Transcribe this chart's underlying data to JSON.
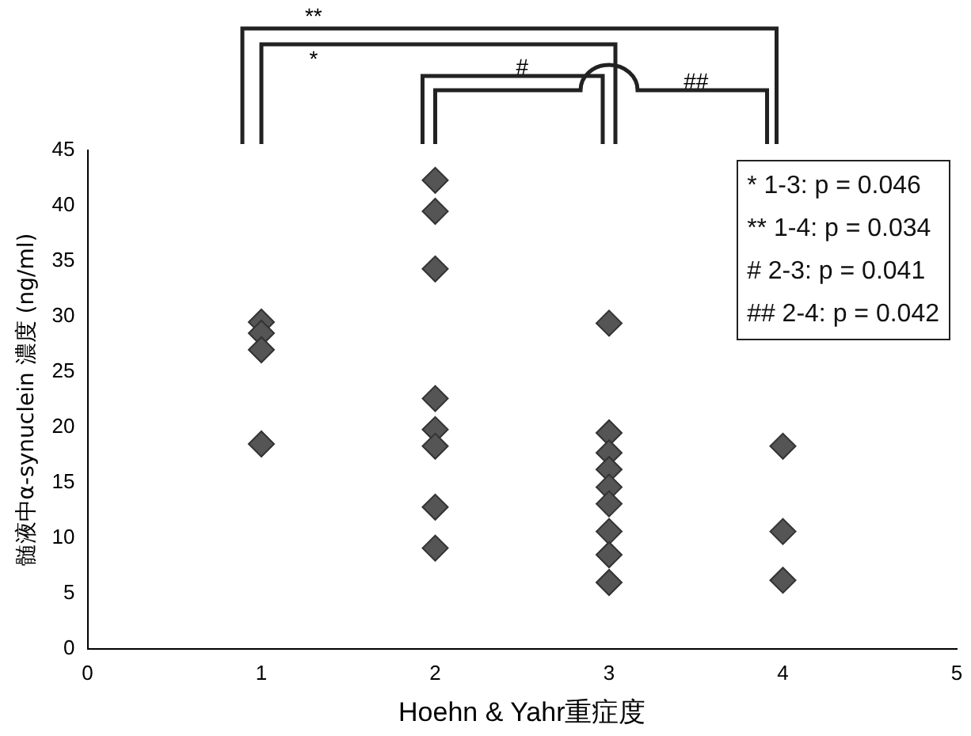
{
  "chart_data": {
    "type": "scatter",
    "xlabel": "Hoehn & Yahr重症度",
    "ylabel": "髄液中α-synuclein 濃度 (ng/ml)",
    "series": [
      {
        "color": "#555555",
        "x": [
          1,
          1,
          1,
          1,
          2,
          2,
          2,
          2,
          2,
          2,
          2,
          2,
          3,
          3,
          3,
          3,
          3,
          3,
          3,
          3,
          3,
          4,
          4,
          4
        ],
        "values": [
          29.5,
          28.5,
          27,
          18.5,
          42.3,
          39.5,
          34.3,
          22.6,
          19.8,
          18.3,
          12.8,
          9.1,
          29.4,
          19.5,
          17.7,
          16.2,
          14.6,
          13.1,
          10.6,
          8.5,
          6,
          18.3,
          10.6,
          6.2
        ]
      }
    ],
    "xlim": [
      0,
      5
    ],
    "xticks": [
      0,
      1,
      2,
      3,
      4,
      5
    ],
    "ylim": [
      0,
      45
    ],
    "yticks": [
      0,
      5,
      10,
      15,
      20,
      25,
      30,
      35,
      40,
      45
    ],
    "grid": false,
    "legend": false,
    "marker": "diamond",
    "annotations": [
      "* 1-3: p = 0.046",
      "** 1-4: p = 0.034",
      "# 2-3: p = 0.041",
      "## 2-4: p = 0.042",
      "**",
      "*",
      "#",
      "##"
    ]
  }
}
